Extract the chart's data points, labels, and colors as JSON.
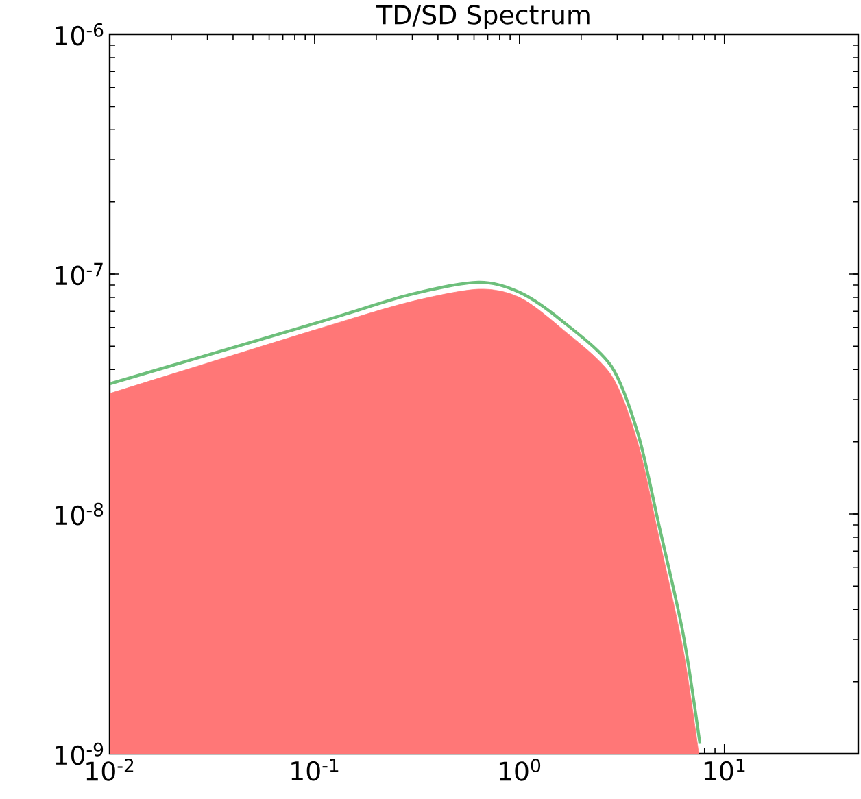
{
  "chart_data": {
    "type": "line",
    "title": "TD/SD Spectrum",
    "log": "xy",
    "grid": false,
    "xlim": [
      0.01,
      45
    ],
    "ylim": [
      1e-09,
      1e-06
    ],
    "xticks": [
      {
        "value": 0.01,
        "label": "10$^{-2}$"
      },
      {
        "value": 0.1,
        "label": "10$^{-1}$"
      },
      {
        "value": 1,
        "label": "10$^{0}$"
      },
      {
        "value": 10,
        "label": "10$^{1}$"
      }
    ],
    "yticks": [
      {
        "value": 1e-09,
        "label": "10$^{-9}$"
      },
      {
        "value": 1e-08,
        "label": "10$^{-8}$"
      },
      {
        "value": 1e-07,
        "label": "10$^{-7}$"
      },
      {
        "value": 1e-06,
        "label": "10$^{-6}$"
      }
    ],
    "series": [
      {
        "type": "area",
        "color": "#ff7777",
        "x": [
          0.01,
          0.1,
          0.29,
          0.63,
          1.0,
          1.58,
          2.8,
          3.8,
          4.79,
          6.3,
          7.5
        ],
        "values": [
          3.18e-08,
          5.85e-08,
          7.65e-08,
          8.65e-08,
          8e-08,
          6e-08,
          3.8e-08,
          1.95e-08,
          8e-09,
          2.7e-09,
          1e-09
        ]
      },
      {
        "color": "#6dbf7b",
        "x": [
          0.01,
          0.1,
          0.29,
          0.63,
          1.0,
          1.58,
          2.8,
          3.8,
          4.79,
          6.3,
          7.6
        ],
        "values": [
          3.49e-08,
          6.22e-08,
          8.2e-08,
          9.25e-08,
          8.4e-08,
          6.47e-08,
          4.14e-08,
          2.14e-08,
          9e-09,
          3.14e-09,
          1.1e-09
        ]
      }
    ]
  }
}
